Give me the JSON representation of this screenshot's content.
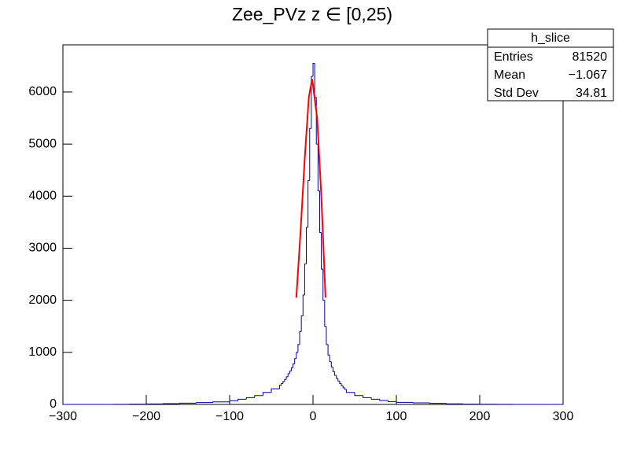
{
  "chart_data": {
    "type": "histogram",
    "title": "Zee_PVz z  ∈ [0,25)",
    "bins": [
      -300,
      -280,
      -260,
      -240,
      -220,
      -200,
      -180,
      -160,
      -140,
      -120,
      -100,
      -90,
      -80,
      -70,
      -60,
      -50,
      -40,
      -38,
      -36,
      -34,
      -32,
      -30,
      -28,
      -26,
      -24,
      -22,
      -20,
      -18,
      -16,
      -14,
      -12,
      -10,
      -8,
      -6,
      -4,
      -2,
      0,
      2,
      4,
      6,
      8,
      10,
      12,
      14,
      16,
      18,
      20,
      22,
      24,
      26,
      28,
      30,
      32,
      34,
      36,
      38,
      40,
      50,
      60,
      70,
      80,
      90,
      100,
      120,
      140,
      160,
      180,
      200,
      220,
      240,
      260,
      280,
      300
    ],
    "values": [
      0,
      0,
      0,
      2,
      5,
      10,
      15,
      25,
      35,
      50,
      70,
      100,
      130,
      170,
      230,
      300,
      370,
      400,
      440,
      480,
      530,
      590,
      640,
      700,
      780,
      880,
      1000,
      1150,
      1400,
      1700,
      2100,
      2700,
      3400,
      4300,
      5300,
      6300,
      6550,
      5900,
      5000,
      4100,
      3300,
      2600,
      2000,
      1500,
      1150,
      950,
      820,
      720,
      630,
      560,
      500,
      450,
      400,
      360,
      320,
      290,
      230,
      170,
      130,
      100,
      75,
      55,
      40,
      30,
      20,
      12,
      6,
      3,
      1,
      0,
      0,
      0
    ],
    "color": "#000099",
    "fit": {
      "color": "#ff0000",
      "x": [
        -20,
        -15,
        -10,
        -5,
        -1,
        5,
        10,
        15
      ],
      "values": [
        2050,
        3300,
        4700,
        5900,
        6250,
        5500,
        4000,
        2050
      ]
    },
    "stats": {
      "name": "h_slice",
      "rows": [
        [
          "Entries",
          "81520"
        ],
        [
          "Mean",
          "−1.067"
        ],
        [
          "Std Dev",
          "34.81"
        ]
      ]
    },
    "xlim": [
      -300,
      300
    ],
    "xticks": [
      {
        "value": -300,
        "label": "−300"
      },
      {
        "value": -200,
        "label": "−200"
      },
      {
        "value": -100,
        "label": "−100"
      },
      0,
      100,
      200,
      300
    ],
    "ylim": [
      0,
      6906
    ],
    "yticks": [
      0,
      1000,
      2000,
      3000,
      4000,
      5000,
      6000
    ]
  }
}
